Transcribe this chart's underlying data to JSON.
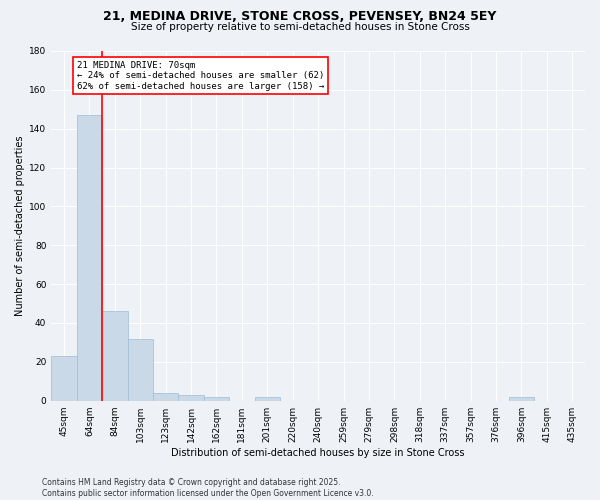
{
  "title": "21, MEDINA DRIVE, STONE CROSS, PEVENSEY, BN24 5EY",
  "subtitle": "Size of property relative to semi-detached houses in Stone Cross",
  "xlabel": "Distribution of semi-detached houses by size in Stone Cross",
  "ylabel": "Number of semi-detached properties",
  "bar_labels": [
    "45sqm",
    "64sqm",
    "84sqm",
    "103sqm",
    "123sqm",
    "142sqm",
    "162sqm",
    "181sqm",
    "201sqm",
    "220sqm",
    "240sqm",
    "259sqm",
    "279sqm",
    "298sqm",
    "318sqm",
    "337sqm",
    "357sqm",
    "376sqm",
    "396sqm",
    "415sqm",
    "435sqm"
  ],
  "bar_values": [
    23,
    147,
    46,
    32,
    4,
    3,
    2,
    0,
    2,
    0,
    0,
    0,
    0,
    0,
    0,
    0,
    0,
    0,
    2,
    0,
    0
  ],
  "bar_color": "#c9d9e8",
  "bar_edgecolor": "#a0bcd4",
  "annotation_text": "21 MEDINA DRIVE: 70sqm\n← 24% of semi-detached houses are smaller (62)\n62% of semi-detached houses are larger (158) →",
  "annotation_box_color": "white",
  "annotation_box_edgecolor": "red",
  "red_line_color": "red",
  "background_color": "#eef2f7",
  "grid_color": "white",
  "ylim": [
    0,
    180
  ],
  "yticks": [
    0,
    20,
    40,
    60,
    80,
    100,
    120,
    140,
    160,
    180
  ],
  "footer_text": "Contains HM Land Registry data © Crown copyright and database right 2025.\nContains public sector information licensed under the Open Government Licence v3.0.",
  "title_fontsize": 9,
  "subtitle_fontsize": 7.5,
  "axis_label_fontsize": 7,
  "tick_fontsize": 6.5,
  "annotation_fontsize": 6.5,
  "footer_fontsize": 5.5
}
